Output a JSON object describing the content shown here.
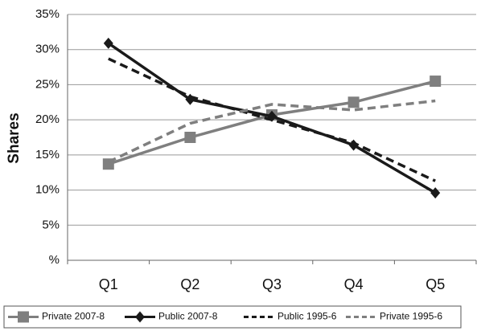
{
  "chart_data": {
    "type": "line",
    "y_label": "Shares",
    "categories": [
      "Q1",
      "Q2",
      "Q3",
      "Q4",
      "Q5"
    ],
    "series": [
      {
        "name": "Private 2007-8",
        "color": "#7f7f7f",
        "dash": false,
        "marker": "square",
        "values": [
          13.7,
          17.5,
          20.7,
          22.5,
          25.5
        ]
      },
      {
        "name": "Public 2007-8",
        "color": "#1a1a1a",
        "dash": false,
        "marker": "diamond",
        "values": [
          30.9,
          22.9,
          20.5,
          16.4,
          9.6
        ]
      },
      {
        "name": "Public 1995-6",
        "color": "#1a1a1a",
        "dash": true,
        "marker": "none",
        "values": [
          28.7,
          23.3,
          20.0,
          16.7,
          11.3
        ]
      },
      {
        "name": "Private 1995-6",
        "color": "#7f7f7f",
        "dash": true,
        "marker": "none",
        "values": [
          14.0,
          19.5,
          22.2,
          21.4,
          22.7
        ]
      }
    ],
    "ylim": [
      0,
      35
    ],
    "yticks": [
      {
        "value": 0,
        "label": "%"
      },
      {
        "value": 5,
        "label": "5%"
      },
      {
        "value": 10,
        "label": "10%"
      },
      {
        "value": 15,
        "label": "15%"
      },
      {
        "value": 20,
        "label": "20%"
      },
      {
        "value": 25,
        "label": "25%"
      },
      {
        "value": 30,
        "label": "30%"
      },
      {
        "value": 35,
        "label": "35%"
      }
    ],
    "grid": true,
    "legend": "bottom"
  }
}
